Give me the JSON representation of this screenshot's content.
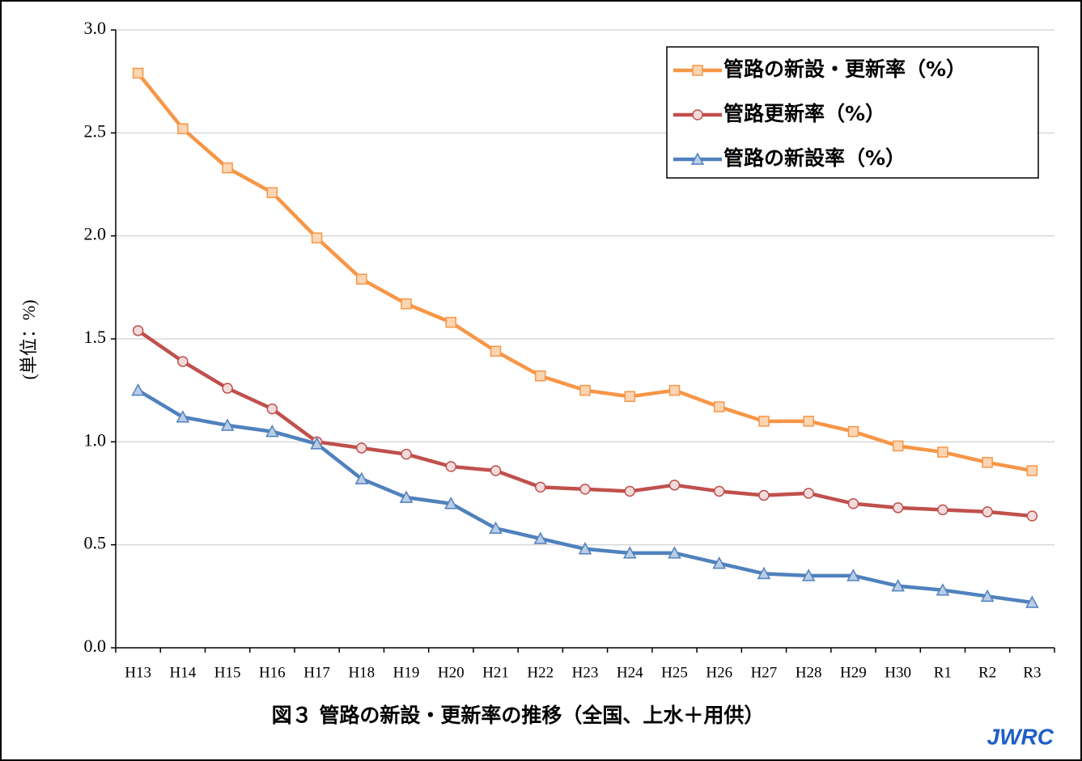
{
  "chart_data": {
    "type": "line",
    "title": "図３ 管路の新設・更新率の推移（全国、上水＋用供）",
    "y_label": "(単位：%)",
    "annotation": "JWRC",
    "categories": [
      "H13",
      "H14",
      "H15",
      "H16",
      "H17",
      "H18",
      "H19",
      "H20",
      "H21",
      "H22",
      "H23",
      "H24",
      "H25",
      "H26",
      "H27",
      "H28",
      "H29",
      "H30",
      "R1",
      "R2",
      "R3"
    ],
    "series": [
      {
        "name": "管路の新設・更新率（%）",
        "color": "#f79646",
        "marker": "square",
        "values": [
          2.79,
          2.52,
          2.33,
          2.21,
          1.99,
          1.79,
          1.67,
          1.58,
          1.44,
          1.32,
          1.25,
          1.22,
          1.25,
          1.17,
          1.1,
          1.1,
          1.05,
          0.98,
          0.95,
          0.9,
          0.86
        ]
      },
      {
        "name": "管路更新率（%）",
        "color": "#c0504d",
        "marker": "circle",
        "values": [
          1.54,
          1.39,
          1.26,
          1.16,
          1.0,
          0.97,
          0.94,
          0.88,
          0.86,
          0.78,
          0.77,
          0.76,
          0.79,
          0.76,
          0.74,
          0.75,
          0.7,
          0.68,
          0.67,
          0.66,
          0.64
        ]
      },
      {
        "name": "管路の新設率（%）",
        "color": "#4f81bd",
        "marker": "triangle",
        "values": [
          1.25,
          1.12,
          1.08,
          1.05,
          0.99,
          0.82,
          0.73,
          0.7,
          0.58,
          0.53,
          0.48,
          0.46,
          0.46,
          0.41,
          0.36,
          0.35,
          0.35,
          0.3,
          0.28,
          0.25,
          0.22
        ]
      }
    ],
    "ylim": [
      0,
      3
    ],
    "yticks": [
      {
        "value": 0,
        "label": "0.0"
      },
      0.5,
      {
        "value": 1,
        "label": "1.0"
      },
      1.5,
      {
        "value": 2,
        "label": "2.0"
      },
      2.5,
      {
        "value": 3,
        "label": "3.0"
      }
    ],
    "grid": true,
    "legend": "upper right"
  }
}
